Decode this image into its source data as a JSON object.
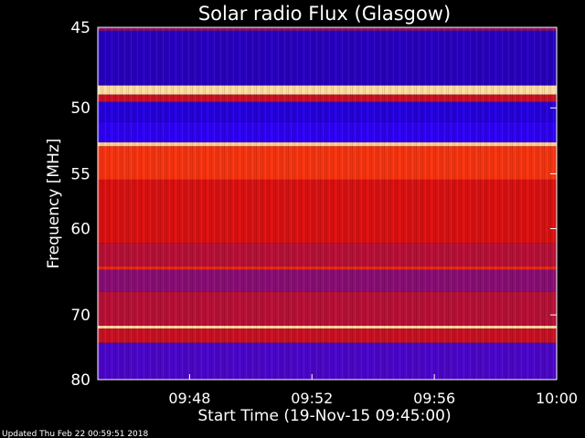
{
  "footer_text": "Updated Thu Feb 22 00:59:51 2018",
  "chart_data": {
    "type": "heatmap",
    "title": "Solar radio Flux (Glasgow)",
    "xlabel": "Start Time (19-Nov-15 09:45:00)",
    "ylabel": "Frequency [MHz]",
    "y_scale": "reciprocal",
    "xlim": [
      "09:45",
      "10:00"
    ],
    "ylim": [
      80,
      45
    ],
    "x_ticks": [
      "09:48",
      "09:52",
      "09:56",
      "10:00"
    ],
    "y_ticks": [
      45,
      50,
      55,
      60,
      70,
      80
    ],
    "colormap": [
      "#2a0080",
      "#2200ff",
      "#a01050",
      "#d81010",
      "#ff4010",
      "#ff9040",
      "#ffe8b0"
    ],
    "bands": [
      {
        "f_min": 45.0,
        "f_max": 45.2,
        "level": 0.3
      },
      {
        "f_min": 45.2,
        "f_max": 48.5,
        "level": 0.08
      },
      {
        "f_min": 48.5,
        "f_max": 49.1,
        "level": 0.98
      },
      {
        "f_min": 49.1,
        "f_max": 49.6,
        "level": 0.45
      },
      {
        "f_min": 49.6,
        "f_max": 51.0,
        "level": 0.12
      },
      {
        "f_min": 51.0,
        "f_max": 52.5,
        "level": 0.18
      },
      {
        "f_min": 52.5,
        "f_max": 52.8,
        "level": 0.95
      },
      {
        "f_min": 52.8,
        "f_max": 55.5,
        "level": 0.62
      },
      {
        "f_min": 55.5,
        "f_max": 61.5,
        "level": 0.5
      },
      {
        "f_min": 61.5,
        "f_max": 64.0,
        "level": 0.4
      },
      {
        "f_min": 64.0,
        "f_max": 64.4,
        "level": 0.58
      },
      {
        "f_min": 64.4,
        "f_max": 67.0,
        "level": 0.3
      },
      {
        "f_min": 67.0,
        "f_max": 71.5,
        "level": 0.4
      },
      {
        "f_min": 71.5,
        "f_max": 71.9,
        "level": 0.97
      },
      {
        "f_min": 71.9,
        "f_max": 74.0,
        "level": 0.45
      },
      {
        "f_min": 74.0,
        "f_max": 80.0,
        "level": 0.22
      }
    ]
  }
}
